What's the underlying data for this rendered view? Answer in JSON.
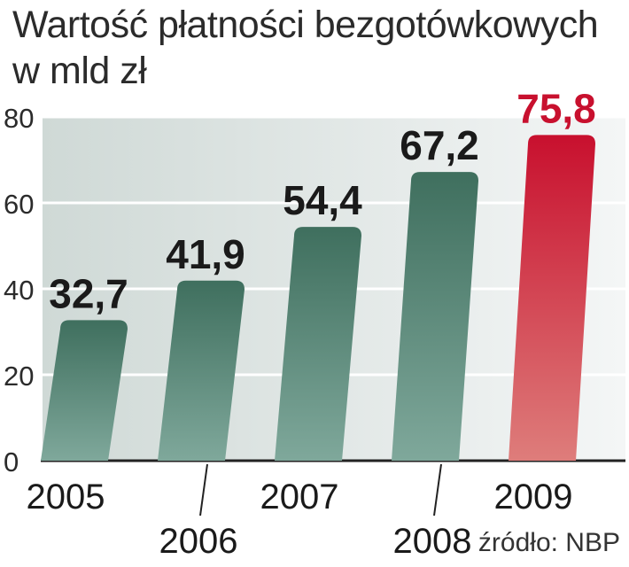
{
  "title": {
    "line1": "Wartość płatności bezgotówkowych",
    "line2": "w mld zł"
  },
  "source": "źródło: NBP",
  "colors": {
    "bar_green": "#4a7a6a",
    "bar_green_light": "#7aa497",
    "bar_red": "#c8102e",
    "bar_red_light": "#dd7a78",
    "value_dark": "#1a1a1a",
    "value_red": "#c8102e",
    "background_band": "#dde3e2"
  },
  "chart_data": {
    "type": "bar",
    "categories": [
      "2005",
      "2006",
      "2007",
      "2008",
      "2009"
    ],
    "values": [
      32.7,
      41.9,
      54.4,
      67.2,
      75.8
    ],
    "data_labels": [
      "32,7",
      "41,9",
      "54,4",
      "67,2",
      "75,8"
    ],
    "highlight_index": 4,
    "ylim": [
      0,
      80
    ],
    "yticks": [
      "0",
      "20",
      "40",
      "60",
      "80"
    ],
    "ytick_values": [
      0,
      20,
      40,
      60,
      80
    ],
    "grid": true,
    "xlabel": "",
    "ylabel": ""
  }
}
